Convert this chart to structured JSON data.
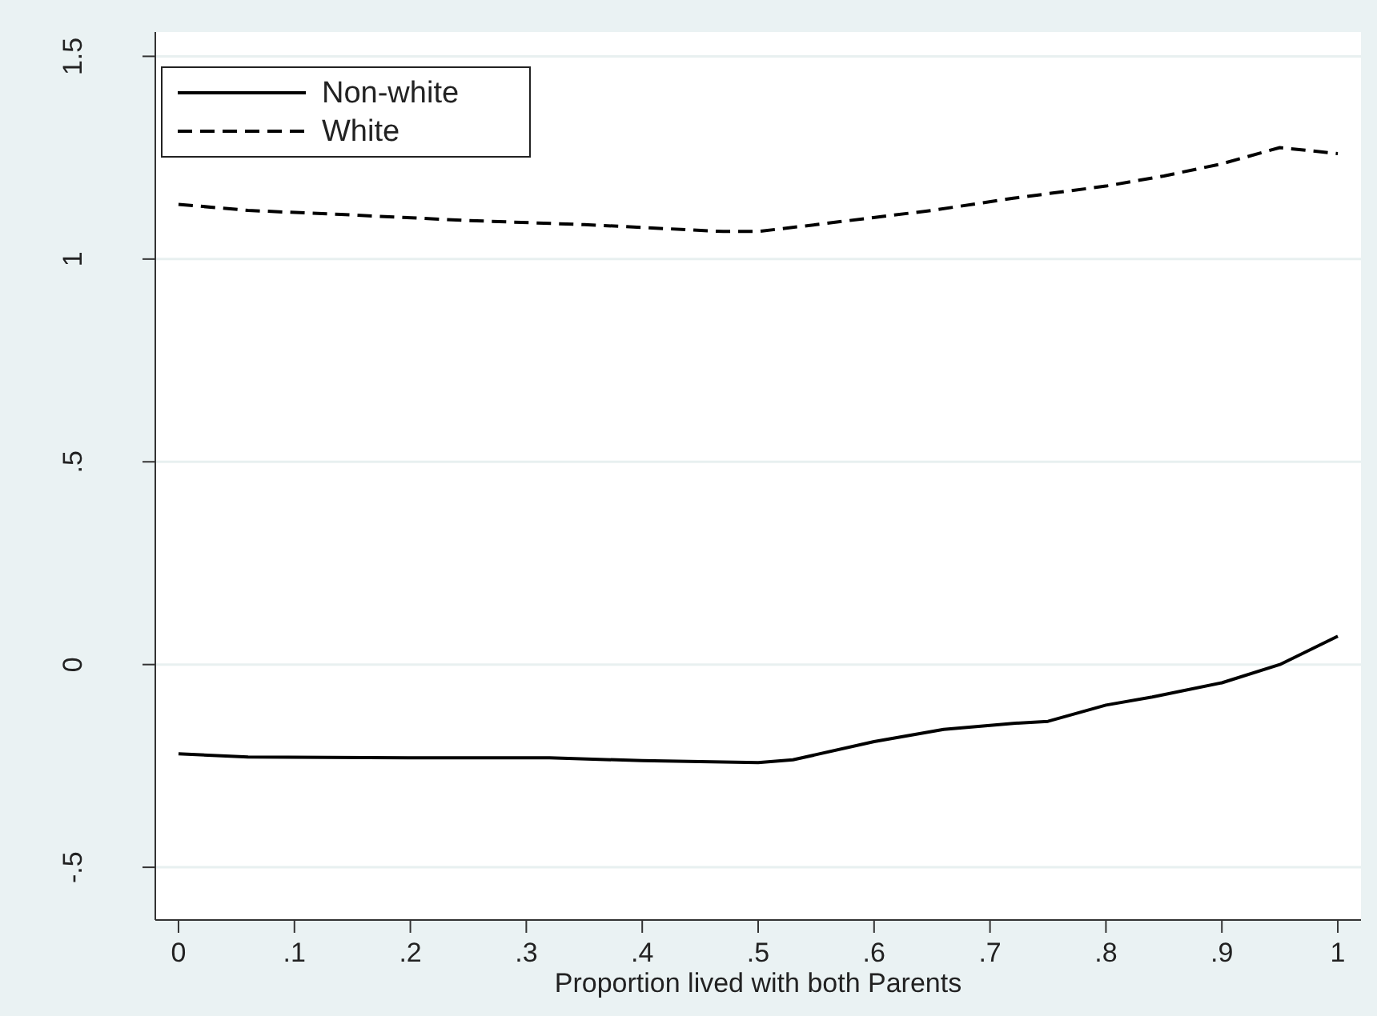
{
  "chart_data": {
    "type": "line",
    "xlabel": "Proportion lived with both Parents",
    "x": [
      0,
      0.06,
      0.14,
      0.25,
      0.35,
      0.47,
      0.5,
      0.55,
      0.65,
      0.72,
      0.8,
      0.85,
      0.9,
      0.95,
      1
    ],
    "series": [
      {
        "name": "Non-white",
        "color": "#000000",
        "line_style": "solid",
        "x": [
          0,
          0.06,
          0.2,
          0.32,
          0.4,
          0.5,
          0.53,
          0.6,
          0.66,
          0.72,
          0.75,
          0.8,
          0.84,
          0.9,
          0.95,
          1
        ],
        "values": [
          -0.22,
          -0.228,
          -0.23,
          -0.23,
          -0.237,
          -0.242,
          -0.235,
          -0.19,
          -0.16,
          -0.145,
          -0.14,
          -0.1,
          -0.08,
          -0.045,
          0,
          0.07
        ]
      },
      {
        "name": "White",
        "color": "#000000",
        "line_style": "dashed",
        "values": [
          1.135,
          1.12,
          1.11,
          1.095,
          1.085,
          1.068,
          1.068,
          1.085,
          1.12,
          1.15,
          1.18,
          1.205,
          1.235,
          1.275,
          1.26
        ]
      }
    ],
    "xlim": [
      -0.02,
      1.02
    ],
    "ylim": [
      -0.63,
      1.56
    ],
    "xticks": [
      0,
      {
        "value": 0.1,
        "label": ".1"
      },
      {
        "value": 0.2,
        "label": ".2"
      },
      {
        "value": 0.3,
        "label": ".3"
      },
      {
        "value": 0.4,
        "label": ".4"
      },
      {
        "value": 0.5,
        "label": ".5"
      },
      {
        "value": 0.6,
        "label": ".6"
      },
      {
        "value": 0.7,
        "label": ".7"
      },
      {
        "value": 0.8,
        "label": ".8"
      },
      {
        "value": 0.9,
        "label": ".9"
      },
      1
    ],
    "yticks": [
      {
        "value": -0.5,
        "label": "-.5"
      },
      0,
      {
        "value": 0.5,
        "label": ".5"
      },
      1,
      1.5
    ],
    "grid": "y",
    "legend": "top left"
  }
}
